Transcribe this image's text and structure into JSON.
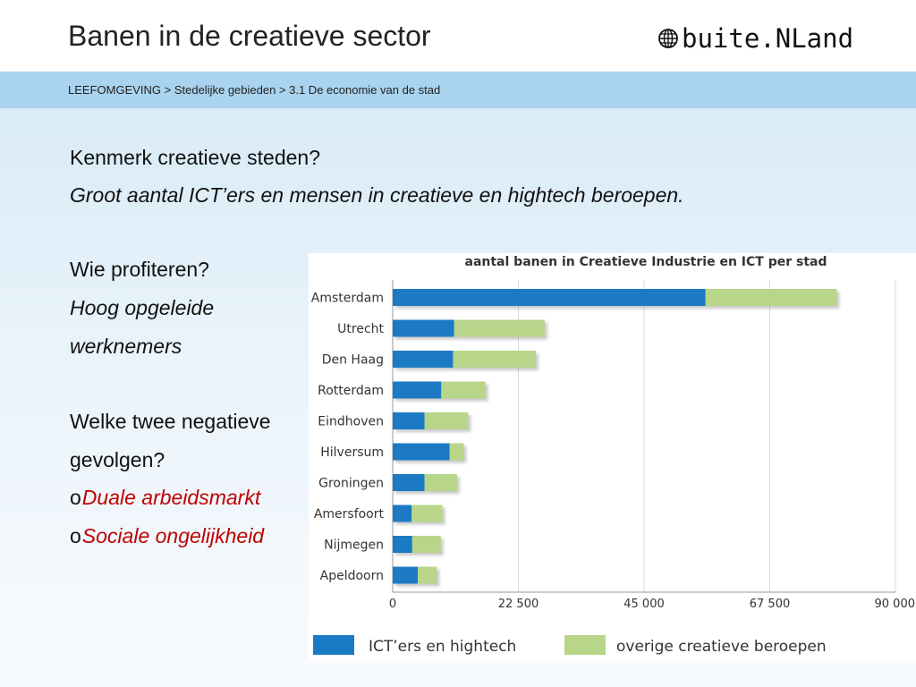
{
  "header": {
    "title": "Banen in de creatieve sector",
    "logo_text": "buite.NLand"
  },
  "breadcrumb": "LEEFOMGEVING > Stedelijke gebieden > 3.1 De economie van de stad",
  "body": {
    "q1": "Kenmerk creatieve steden?",
    "a1": "Groot aantal ICT’ers en mensen in creatieve en hightech beroepen.",
    "q2": "Wie profiteren?",
    "a2_line1": "Hoog opgeleide",
    "a2_line2": "werknemers",
    "q3_line1": "Welke twee negatieve",
    "q3_line2": "gevolgen?",
    "bullet": "o",
    "b1": "Duale arbeidsmarkt",
    "b2": "Sociale ongelijkheid"
  },
  "colors": {
    "ict": "#1a7ac4",
    "overig": "#b8d68a",
    "crumb_bar": "#a9d3ee",
    "answer_red": "#c00000"
  },
  "chart_data": {
    "type": "bar",
    "orientation": "horizontal",
    "stacked": true,
    "title": "aantal banen in Creatieve Industrie en ICT per stad",
    "categories": [
      "Amsterdam",
      "Utrecht",
      "Den Haag",
      "Rotterdam",
      "Eindhoven",
      "Hilversum",
      "Groningen",
      "Amersfoort",
      "Nijmegen",
      "Apeldoorn"
    ],
    "series": [
      {
        "name": "ICT’ers en hightech",
        "values": [
          56000,
          11000,
          10800,
          8700,
          5700,
          10200,
          5700,
          3400,
          3500,
          4500
        ]
      },
      {
        "name": "overige creatieve beroepen",
        "values": [
          23500,
          16200,
          14800,
          7900,
          7800,
          2500,
          5800,
          5500,
          5100,
          3400
        ]
      }
    ],
    "xlim": [
      0,
      90000
    ],
    "xticks": [
      0,
      22500,
      45000,
      67500,
      90000
    ],
    "xtick_labels": [
      "0",
      "22 500",
      "45 000",
      "67 500",
      "90 000"
    ],
    "grid": true,
    "legend": "bottom"
  }
}
